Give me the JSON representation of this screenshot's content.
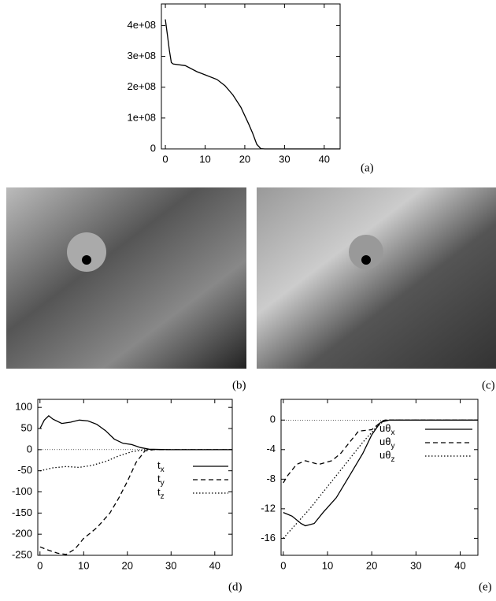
{
  "chart_data": [
    {
      "type": "line",
      "xlim": [
        -1,
        44
      ],
      "ylim": [
        0,
        470000000
      ],
      "xticks": [
        0,
        10,
        20,
        30,
        40
      ],
      "yticks": [
        0,
        {
          "value": 100000000,
          "label": "1e+08"
        },
        {
          "value": 200000000,
          "label": "2e+08"
        },
        {
          "value": 300000000,
          "label": "3e+08"
        },
        {
          "value": 400000000,
          "label": "4e+08"
        }
      ],
      "series": [
        {
          "color": "#000000",
          "dash": "solid",
          "x": [
            0,
            0.5,
            1,
            1.5,
            2,
            5,
            8,
            10,
            13,
            15,
            17,
            19,
            21,
            22,
            23,
            24,
            25,
            44
          ],
          "values": [
            420000000,
            370000000,
            320000000,
            280000000,
            275000000,
            270000000,
            250000000,
            240000000,
            225000000,
            205000000,
            175000000,
            135000000,
            80000000,
            50000000,
            15000000,
            1000000,
            0,
            0
          ]
        }
      ]
    },
    {
      "type": "line",
      "xlim": [
        -0.5,
        44
      ],
      "ylim": [
        -250,
        119
      ],
      "xticks": [
        0,
        10,
        20,
        30,
        40
      ],
      "yticks": [
        100,
        50,
        0,
        -50,
        -100,
        -150,
        -200,
        -250
      ],
      "zero_line": true,
      "series": [
        {
          "name": "tx",
          "color": "#000000",
          "dash": "solid",
          "x": [
            0,
            1,
            2,
            3,
            5,
            7,
            9,
            11,
            13,
            15,
            17,
            19,
            21,
            23,
            25,
            30,
            44
          ],
          "values": [
            50,
            70,
            80,
            72,
            62,
            65,
            70,
            68,
            60,
            45,
            25,
            15,
            12,
            5,
            1,
            0,
            0
          ]
        },
        {
          "name": "ty",
          "color": "#000000",
          "dash": "dashed",
          "x": [
            0,
            2,
            4,
            6,
            8,
            10,
            13,
            16,
            18,
            20,
            22,
            24,
            26,
            44
          ],
          "values": [
            -230,
            -238,
            -245,
            -248,
            -235,
            -210,
            -185,
            -150,
            -115,
            -75,
            -30,
            -3,
            0,
            0
          ]
        },
        {
          "name": "tz",
          "color": "#000000",
          "dash": "dotted",
          "x": [
            0,
            3,
            6,
            9,
            12,
            15,
            18,
            21,
            24,
            44
          ],
          "values": [
            -50,
            -43,
            -40,
            -42,
            -37,
            -28,
            -15,
            -5,
            0,
            0
          ]
        }
      ]
    },
    {
      "type": "line",
      "xlim": [
        -0.5,
        44
      ],
      "ylim": [
        -18.3,
        2.8
      ],
      "xticks": [
        0,
        10,
        20,
        30,
        40
      ],
      "yticks": [
        0,
        -4,
        -8,
        -12,
        -16
      ],
      "zero_line": true,
      "series": [
        {
          "name": "uθx",
          "color": "#000000",
          "dash": "solid",
          "x": [
            0,
            2,
            4,
            5,
            7,
            9,
            12,
            15,
            18,
            20,
            22,
            24,
            44
          ],
          "values": [
            -12.5,
            -13,
            -14,
            -14.3,
            -14,
            -12.5,
            -10.5,
            -7.5,
            -4.5,
            -2,
            -0.3,
            0,
            0
          ]
        },
        {
          "name": "uθy",
          "color": "#000000",
          "dash": "dashed",
          "x": [
            0,
            1,
            3,
            5,
            8,
            11,
            13,
            15,
            17,
            20,
            22,
            23,
            44
          ],
          "values": [
            -8.5,
            -7.5,
            -6,
            -5.5,
            -6,
            -5.5,
            -4.5,
            -3,
            -1.5,
            -1.3,
            -0.3,
            0,
            0
          ]
        },
        {
          "name": "uθz",
          "color": "#000000",
          "dash": "dotted",
          "x": [
            0,
            3,
            6,
            10,
            14,
            18,
            21,
            23,
            44
          ],
          "values": [
            -16,
            -14,
            -12,
            -9,
            -6,
            -3,
            -1,
            0,
            0
          ]
        }
      ]
    }
  ],
  "panel_labels": [
    "(a)",
    "(b)",
    "(c)",
    "(d)",
    "(e)"
  ]
}
